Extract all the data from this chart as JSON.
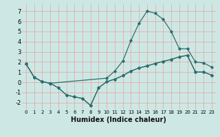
{
  "xlabel": "Humidex (Indice chaleur)",
  "bg_color": "#cde8e4",
  "grid_color": "#e8a0a0",
  "line_color": "#2d6e6e",
  "xlim": [
    -0.5,
    23.5
  ],
  "ylim": [
    -2.7,
    7.7
  ],
  "xticks": [
    0,
    1,
    2,
    3,
    4,
    5,
    6,
    7,
    8,
    9,
    10,
    11,
    12,
    13,
    14,
    15,
    16,
    17,
    18,
    19,
    20,
    21,
    22,
    23
  ],
  "yticks": [
    -2,
    -1,
    0,
    1,
    2,
    3,
    4,
    5,
    6,
    7
  ],
  "line1_x": [
    0,
    1,
    2,
    3,
    4,
    5,
    6,
    7,
    8,
    9,
    10,
    11,
    12,
    13,
    14,
    15,
    16,
    17,
    18,
    19,
    20,
    21,
    22,
    23
  ],
  "line1_y": [
    1.8,
    0.5,
    0.05,
    -0.1,
    -0.55,
    -1.25,
    -1.45,
    -1.6,
    -2.3,
    -0.55,
    0.05,
    0.3,
    0.65,
    1.1,
    1.4,
    1.6,
    1.85,
    2.05,
    2.25,
    2.5,
    2.65,
    1.0,
    1.0,
    0.7
  ],
  "line2_x": [
    0,
    1,
    2,
    3,
    10,
    11,
    12,
    13,
    14,
    15,
    16,
    17,
    18,
    19,
    20,
    21,
    22,
    23
  ],
  "line2_y": [
    1.8,
    0.5,
    0.05,
    -0.1,
    0.4,
    1.1,
    2.1,
    4.1,
    5.8,
    7.0,
    6.8,
    6.2,
    5.0,
    3.3,
    3.3,
    2.0,
    1.9,
    1.5
  ],
  "line3_x": [
    0,
    1,
    2,
    3,
    4,
    5,
    6,
    7,
    8,
    9,
    10,
    11,
    12,
    13,
    14,
    15,
    16,
    17,
    18,
    19,
    20,
    21,
    22,
    23
  ],
  "line3_y": [
    1.8,
    0.5,
    0.05,
    -0.1,
    -0.55,
    -1.25,
    -1.45,
    -1.6,
    -2.3,
    -0.55,
    0.05,
    0.3,
    0.65,
    1.1,
    1.4,
    1.6,
    1.85,
    2.05,
    2.25,
    2.5,
    2.65,
    1.0,
    1.0,
    0.7
  ],
  "xlabel_fontsize": 7,
  "tick_fontsize_x": 5,
  "tick_fontsize_y": 6
}
